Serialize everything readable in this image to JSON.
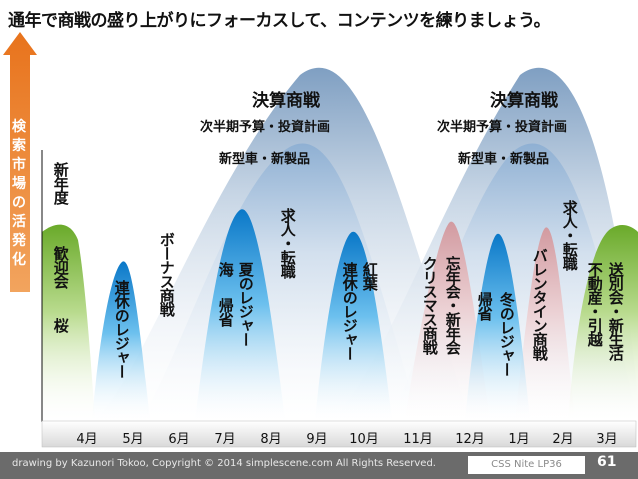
{
  "title": "通年で商戦の盛り上がりにフォーカスして、コンテンツを練りましょう。",
  "y_axis_label": [
    "検",
    "索",
    "市",
    "場",
    "の",
    "活",
    "発",
    "化"
  ],
  "months": [
    "4月",
    "5月",
    "6月",
    "7月",
    "8月",
    "9月",
    "10月",
    "11月",
    "12月",
    "1月",
    "2月",
    "3月"
  ],
  "big_waves": [
    {
      "title": "決算商戦",
      "sub1": "次半期予算・投資計画",
      "sub2": "新型車・新製品"
    },
    {
      "title": "決算商戦",
      "sub1": "次半期予算・投資計画",
      "sub2": "新型車・新製品"
    }
  ],
  "labels": {
    "new_fiscal_year": "新年度",
    "welcome_party": "歓迎会",
    "cherry_blossom": "桜",
    "gw_leisure": "連休のレジャー",
    "bonus_sale": "ボーナス商戦",
    "sea_homecoming_1": "海",
    "sea_homecoming_2": "帰省",
    "summer_leisure": "夏のレジャー",
    "job_transfer_1": "求人・転職",
    "autumn_leaves": "紅葉",
    "autumn_leisure": "連休のレジャー",
    "christmas_sale": "クリスマス商戦",
    "year_end_parties": "忘年会・新年会",
    "winter_homecoming": "帰省",
    "winter_leisure": "冬のレジャー",
    "valentine_sale": "バレンタイン商戦",
    "job_transfer_2": "求人・転職",
    "farewell_new_life": "送別会・新生活",
    "real_estate_moving": "不動産・引越"
  },
  "footer": {
    "copyright": "drawing by Kazunori Tokoo, Copyright © 2014 simplescene.com All Rights Reserved.",
    "event": "CSS Nite LP36",
    "page_number": "61"
  },
  "colors": {
    "axis_arrow": "#e8731c",
    "big_wave": "#9fb6cf",
    "blue_wave": "#1a8fd6",
    "green_wave": "#7ab43a",
    "pink_wave": "#d9a3a8",
    "footer_bg": "#6b6b6b"
  }
}
